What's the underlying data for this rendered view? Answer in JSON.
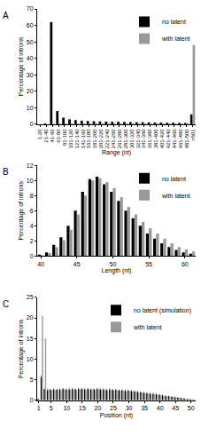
{
  "chart_data": [
    {
      "type": "bar",
      "panel": "A",
      "x_label": "Range (nt)",
      "y_label": "Percentage of introns",
      "categories": [
        "1-20",
        "21-40",
        "41-60",
        "61-80",
        "81-100",
        "101-120",
        "121-140",
        "141-160",
        "161-180",
        "181-200",
        "201-220",
        "221-240",
        "241-260",
        "261-280",
        "281-300",
        "301-320",
        "321-340",
        "341-360",
        "361-380",
        "381-400",
        "401-420",
        "421-440",
        "441-460",
        "461-480",
        "481-500",
        ">501"
      ],
      "series": [
        {
          "name": "no latent",
          "color": "#000000",
          "values": [
            0,
            0.5,
            62,
            8,
            4,
            3,
            2.5,
            2.2,
            2,
            1.8,
            1.7,
            1.6,
            1.5,
            1.5,
            1.4,
            1.3,
            1.2,
            1.2,
            1.1,
            1.0,
            1.0,
            0.9,
            0.9,
            0.8,
            0.8,
            6
          ]
        },
        {
          "name": "with latent",
          "color": "#999999",
          "values": [
            0,
            0,
            0.3,
            0.5,
            0.5,
            0.6,
            0.6,
            0.6,
            0.6,
            0.6,
            0.6,
            0.6,
            0.6,
            0.6,
            0.6,
            0.6,
            0.6,
            0.6,
            0.6,
            0.6,
            0.6,
            0.6,
            0.6,
            0.6,
            0.6,
            48
          ]
        }
      ],
      "ylim": [
        0,
        70
      ],
      "yticks": [
        0,
        10,
        20,
        30,
        40,
        50,
        60,
        70
      ],
      "grid": false,
      "legend": "top right"
    },
    {
      "type": "bar",
      "panel": "B",
      "x_label": "Length (nt)",
      "y_label": "Percentage of introns",
      "x": [
        40,
        41,
        42,
        43,
        44,
        45,
        46,
        47,
        48,
        49,
        50,
        51,
        52,
        53,
        54,
        55,
        56,
        57,
        58,
        59,
        60,
        61
      ],
      "series": [
        {
          "name": "no latent",
          "color": "#000000",
          "values": [
            0.2,
            0.5,
            1.5,
            2.5,
            4,
            6,
            8.5,
            10.2,
            10.5,
            9.5,
            8.5,
            7.3,
            6,
            5,
            4,
            3,
            2.3,
            1.7,
            1.2,
            0.8,
            0.5,
            0.3
          ]
        },
        {
          "name": "with latent",
          "color": "#999999",
          "values": [
            0.1,
            0.4,
            1.2,
            2.1,
            3.5,
            5.5,
            8,
            10,
            10.3,
            9.8,
            9,
            7.8,
            6.5,
            5.5,
            4.5,
            3.7,
            3,
            2.3,
            1.7,
            1.2,
            0.9,
            0.6
          ]
        }
      ],
      "xlim": [
        39.5,
        61.5
      ],
      "xticks": [
        40,
        45,
        50,
        55,
        60
      ],
      "ylim": [
        0,
        12
      ],
      "yticks": [
        0,
        2,
        4,
        6,
        8,
        10,
        12
      ],
      "grid": false,
      "legend": "top right"
    },
    {
      "type": "bar",
      "panel": "C",
      "x_label": "Position (nt)",
      "y_label": "Percentage of introns",
      "x": [
        1,
        2,
        3,
        4,
        5,
        6,
        7,
        8,
        9,
        10,
        11,
        12,
        13,
        14,
        15,
        16,
        17,
        18,
        19,
        20,
        21,
        22,
        23,
        24,
        25,
        26,
        27,
        28,
        29,
        30,
        31,
        32,
        33,
        34,
        35,
        36,
        37,
        38,
        39,
        40,
        41,
        42,
        43,
        44,
        45,
        46,
        47,
        48,
        49,
        50,
        51
      ],
      "series": [
        {
          "name": "no latent (simulation)",
          "color": "#000000",
          "values": [
            0.3,
            5.5,
            2.6,
            2.4,
            2.5,
            2.6,
            2.5,
            2.6,
            2.7,
            2.6,
            2.6,
            2.7,
            2.6,
            2.7,
            2.7,
            2.6,
            2.7,
            2.6,
            2.6,
            2.7,
            2.6,
            2.6,
            2.5,
            2.6,
            2.5,
            2.5,
            2.4,
            2.4,
            2.3,
            2.3,
            2.2,
            2.1,
            2.0,
            1.9,
            1.8,
            1.7,
            1.6,
            1.5,
            1.4,
            1.3,
            1.2,
            1.0,
            0.9,
            0.8,
            0.7,
            0.6,
            0.5,
            0.4,
            0.3,
            0.2,
            0.1
          ],
          "error": [
            0.1,
            0.5,
            0.3,
            0.3,
            0.3,
            0.3,
            0.3,
            0.3,
            0.3,
            0.3,
            0.3,
            0.3,
            0.3,
            0.3,
            0.3,
            0.3,
            0.3,
            0.3,
            0.3,
            0.3,
            0.3,
            0.3,
            0.3,
            0.3,
            0.3,
            0.3,
            0.3,
            0.3,
            0.3,
            0.3,
            0.3,
            0.3,
            0.3,
            0.3,
            0.3,
            0.3,
            0.3,
            0.3,
            0.3,
            0.3,
            0.2,
            0.2,
            0.2,
            0.2,
            0.2,
            0.2,
            0.2,
            0.2,
            0.1,
            0.1,
            0.1
          ]
        },
        {
          "name": "with latent",
          "color": "#999999",
          "values": [
            0.2,
            20.5,
            15,
            2.7,
            2.4,
            2.5,
            2.6,
            2.4,
            2.6,
            2.5,
            2.5,
            2.6,
            2.5,
            2.6,
            2.7,
            2.5,
            2.6,
            2.5,
            2.5,
            2.6,
            2.5,
            2.5,
            2.4,
            2.5,
            2.4,
            2.4,
            2.3,
            2.3,
            2.2,
            2.2,
            2.1,
            2.0,
            1.9,
            1.8,
            1.7,
            1.6,
            1.5,
            1.4,
            1.3,
            1.2,
            1.1,
            1.0,
            0.9,
            0.8,
            0.7,
            0.6,
            0.5,
            0.4,
            0.3,
            0.2,
            0.1
          ]
        }
      ],
      "xlim": [
        0.5,
        51.5
      ],
      "xticks": [
        1,
        5,
        10,
        15,
        20,
        25,
        30,
        35,
        40,
        45,
        50
      ],
      "ylim": [
        0,
        25
      ],
      "yticks": [
        0,
        5,
        10,
        15,
        20,
        25
      ],
      "grid": false,
      "legend": "top right"
    }
  ]
}
